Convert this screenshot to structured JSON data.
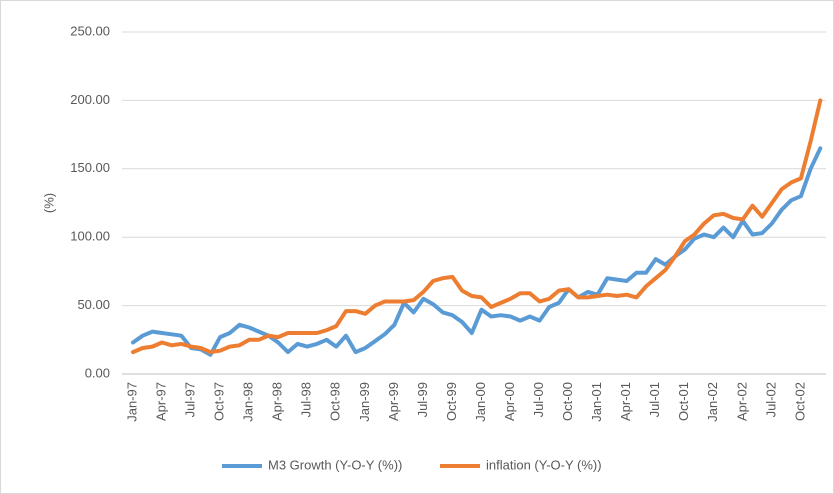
{
  "chart_data": {
    "type": "line",
    "ylabel": "(%)",
    "categories": [
      "Jan-97",
      null,
      null,
      "Apr-97",
      null,
      null,
      "Jul-97",
      null,
      null,
      "Oct-97",
      null,
      null,
      "Jan-98",
      null,
      null,
      "Apr-98",
      null,
      null,
      "Jul-98",
      null,
      null,
      "Oct-98",
      null,
      null,
      "Jan-99",
      null,
      null,
      "Apr-99",
      null,
      null,
      "Jul-99",
      null,
      null,
      "Oct-99",
      null,
      null,
      "Jan-00",
      null,
      null,
      "Apr-00",
      null,
      null,
      "Jul-00",
      null,
      null,
      "Oct-00",
      null,
      null,
      "Jan-01",
      null,
      null,
      "Apr-01",
      null,
      null,
      "Jul-01",
      null,
      null,
      "Oct-01",
      null,
      null,
      "Jan-02",
      null,
      null,
      "Apr-02",
      null,
      null,
      "Jul-02",
      null,
      null,
      "Oct-02",
      null,
      null
    ],
    "series": [
      {
        "name": "M3 Growth (Y-O-Y (%))",
        "color": "#5b9bd5",
        "values": [
          23,
          28,
          31,
          30,
          29,
          28,
          19,
          18,
          14,
          27,
          30,
          36,
          34,
          31,
          28,
          23,
          16,
          22,
          20,
          22,
          25,
          20,
          28,
          16,
          19,
          24,
          29,
          36,
          52,
          45,
          55,
          51,
          45,
          43,
          38,
          30,
          47,
          42,
          43,
          42,
          39,
          42,
          39,
          49,
          52,
          62,
          56,
          60,
          58,
          70,
          69,
          68,
          74,
          74,
          84,
          80,
          86,
          91,
          99,
          102,
          100,
          107,
          100,
          112,
          102,
          103,
          110,
          120,
          127,
          130,
          150,
          165
        ]
      },
      {
        "name": "inflation (Y-O-Y (%))",
        "color": "#ed7d31",
        "values": [
          16,
          19,
          20,
          23,
          21,
          22,
          20,
          19,
          16,
          17,
          20,
          21,
          25,
          25,
          28,
          27,
          30,
          30,
          30,
          30,
          32,
          35,
          46,
          46,
          44,
          50,
          53,
          53,
          53,
          54,
          60,
          68,
          70,
          71,
          61,
          57,
          56,
          49,
          52,
          55,
          59,
          59,
          53,
          55,
          61,
          62,
          56,
          56,
          57,
          58,
          57,
          58,
          56,
          64,
          70,
          76,
          86,
          97,
          102,
          110,
          116,
          117,
          114,
          113,
          123,
          115,
          125,
          135,
          140,
          143,
          170,
          200
        ]
      }
    ],
    "ylim": [
      0,
      250
    ],
    "yticks": [
      {
        "value": 0,
        "label": "0.00"
      },
      {
        "value": 50,
        "label": "50.00"
      },
      {
        "value": 100,
        "label": "100.00"
      },
      {
        "value": 150,
        "label": "150.00"
      },
      {
        "value": 200,
        "label": "200.00"
      },
      {
        "value": 250,
        "label": "250.00"
      }
    ],
    "grid": true,
    "legend": "bottom"
  }
}
